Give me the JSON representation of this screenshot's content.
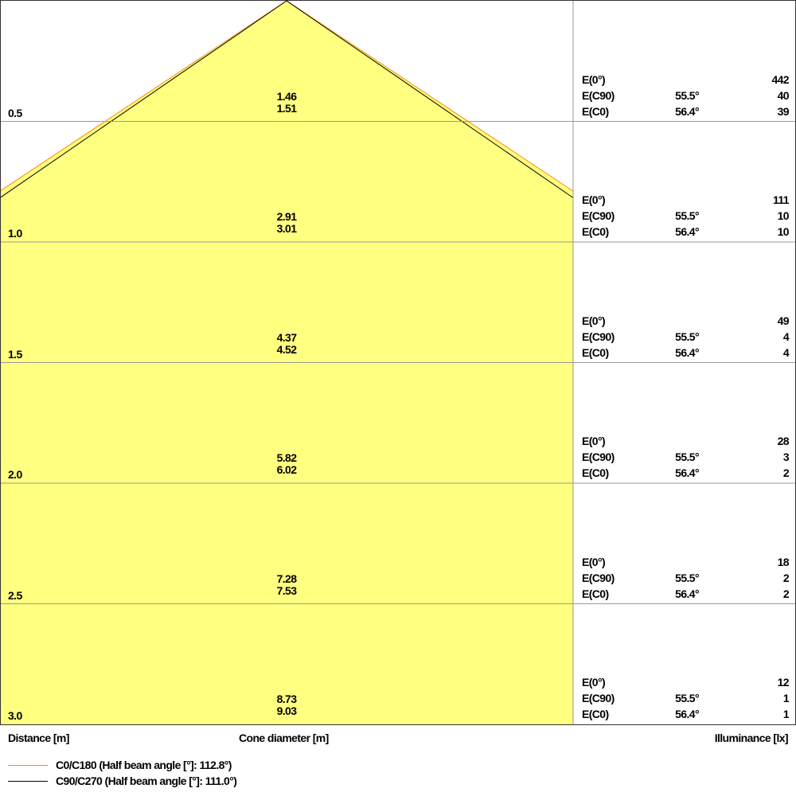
{
  "chart_data": {
    "type": "cone-diagram",
    "colors": {
      "fill": "#ffff80",
      "c0_c180": "#ff8c00",
      "c90_c270": "#000000",
      "grid": "#999999"
    },
    "rows": [
      {
        "distance": "0.5",
        "cone": [
          "1.46",
          "1.51"
        ],
        "e0": "442",
        "c90_angle": "55.5°",
        "c90": "40",
        "c0_angle": "56.4°",
        "c0": "39"
      },
      {
        "distance": "1.0",
        "cone": [
          "2.91",
          "3.01"
        ],
        "e0": "111",
        "c90_angle": "55.5°",
        "c90": "10",
        "c0_angle": "56.4°",
        "c0": "10"
      },
      {
        "distance": "1.5",
        "cone": [
          "4.37",
          "4.52"
        ],
        "e0": "49",
        "c90_angle": "55.5°",
        "c90": "4",
        "c0_angle": "56.4°",
        "c0": "4"
      },
      {
        "distance": "2.0",
        "cone": [
          "5.82",
          "6.02"
        ],
        "e0": "28",
        "c90_angle": "55.5°",
        "c90": "3",
        "c0_angle": "56.4°",
        "c0": "2"
      },
      {
        "distance": "2.5",
        "cone": [
          "7.28",
          "7.53"
        ],
        "e0": "18",
        "c90_angle": "55.5°",
        "c90": "2",
        "c0_angle": "56.4°",
        "c0": "2"
      },
      {
        "distance": "3.0",
        "cone": [
          "8.73",
          "9.03"
        ],
        "e0": "12",
        "c90_angle": "55.5°",
        "c90": "1",
        "c0_angle": "56.4°",
        "c0": "1"
      }
    ],
    "labels": {
      "e0": "E(0°)",
      "ec90": "E(C90)",
      "ec0": "E(C0)"
    },
    "axis": {
      "distance": "Distance [m]",
      "cone": "Cone diameter [m]",
      "illuminance": "Illuminance [lx]"
    },
    "legend": [
      {
        "name": "C0/C180 (Half beam angle [°]: 112.8°)",
        "color": "#ff8c00",
        "half_beam_angle": 112.8
      },
      {
        "name": "C90/C270 (Half beam angle [°]: 111.0°)",
        "color": "#000000",
        "half_beam_angle": 111.0
      }
    ]
  }
}
